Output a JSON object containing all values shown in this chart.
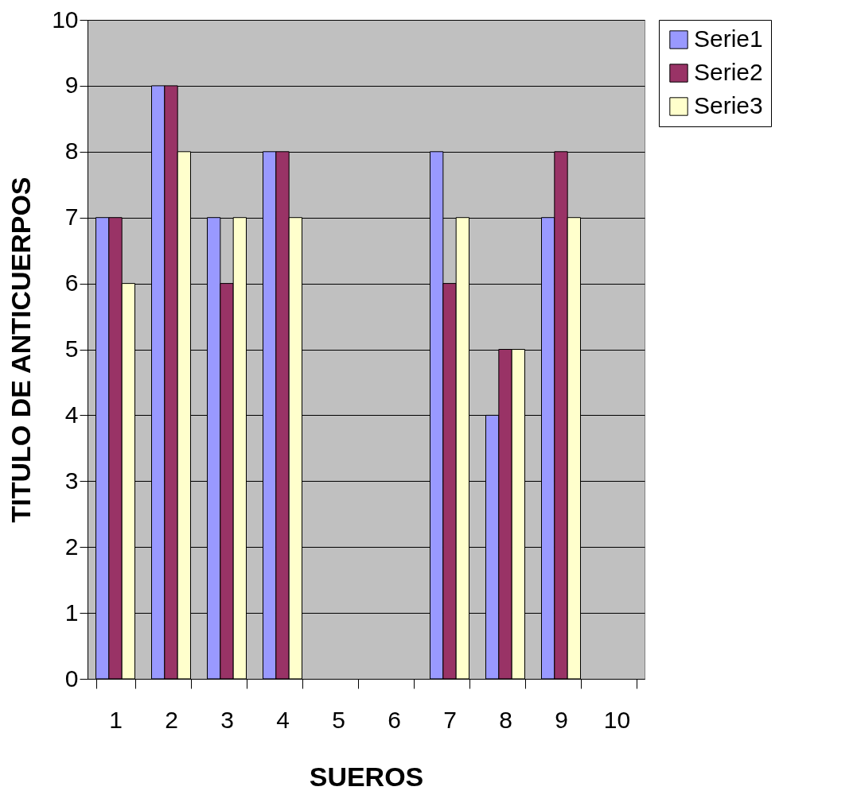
{
  "chart_data": {
    "type": "bar",
    "xlabel": "SUEROS",
    "ylabel": "TITULO DE ANTICUERPOS",
    "categories": [
      "1",
      "2",
      "3",
      "4",
      "5",
      "6",
      "7",
      "8",
      "9",
      "10"
    ],
    "series": [
      {
        "name": "Serie1",
        "color": "#9999ff",
        "values": [
          7,
          9,
          7,
          8,
          null,
          null,
          8,
          4,
          7,
          null
        ]
      },
      {
        "name": "Serie2",
        "color": "#993366",
        "values": [
          7,
          9,
          6,
          8,
          null,
          null,
          6,
          5,
          8,
          null
        ]
      },
      {
        "name": "Serie3",
        "color": "#ffffcc",
        "values": [
          6,
          8,
          7,
          7,
          null,
          null,
          7,
          5,
          7,
          null
        ]
      }
    ],
    "ylim": [
      0,
      10
    ],
    "yticks": [
      0,
      1,
      2,
      3,
      4,
      5,
      6,
      7,
      8,
      9,
      10
    ],
    "grid": "y",
    "legend": "right"
  }
}
